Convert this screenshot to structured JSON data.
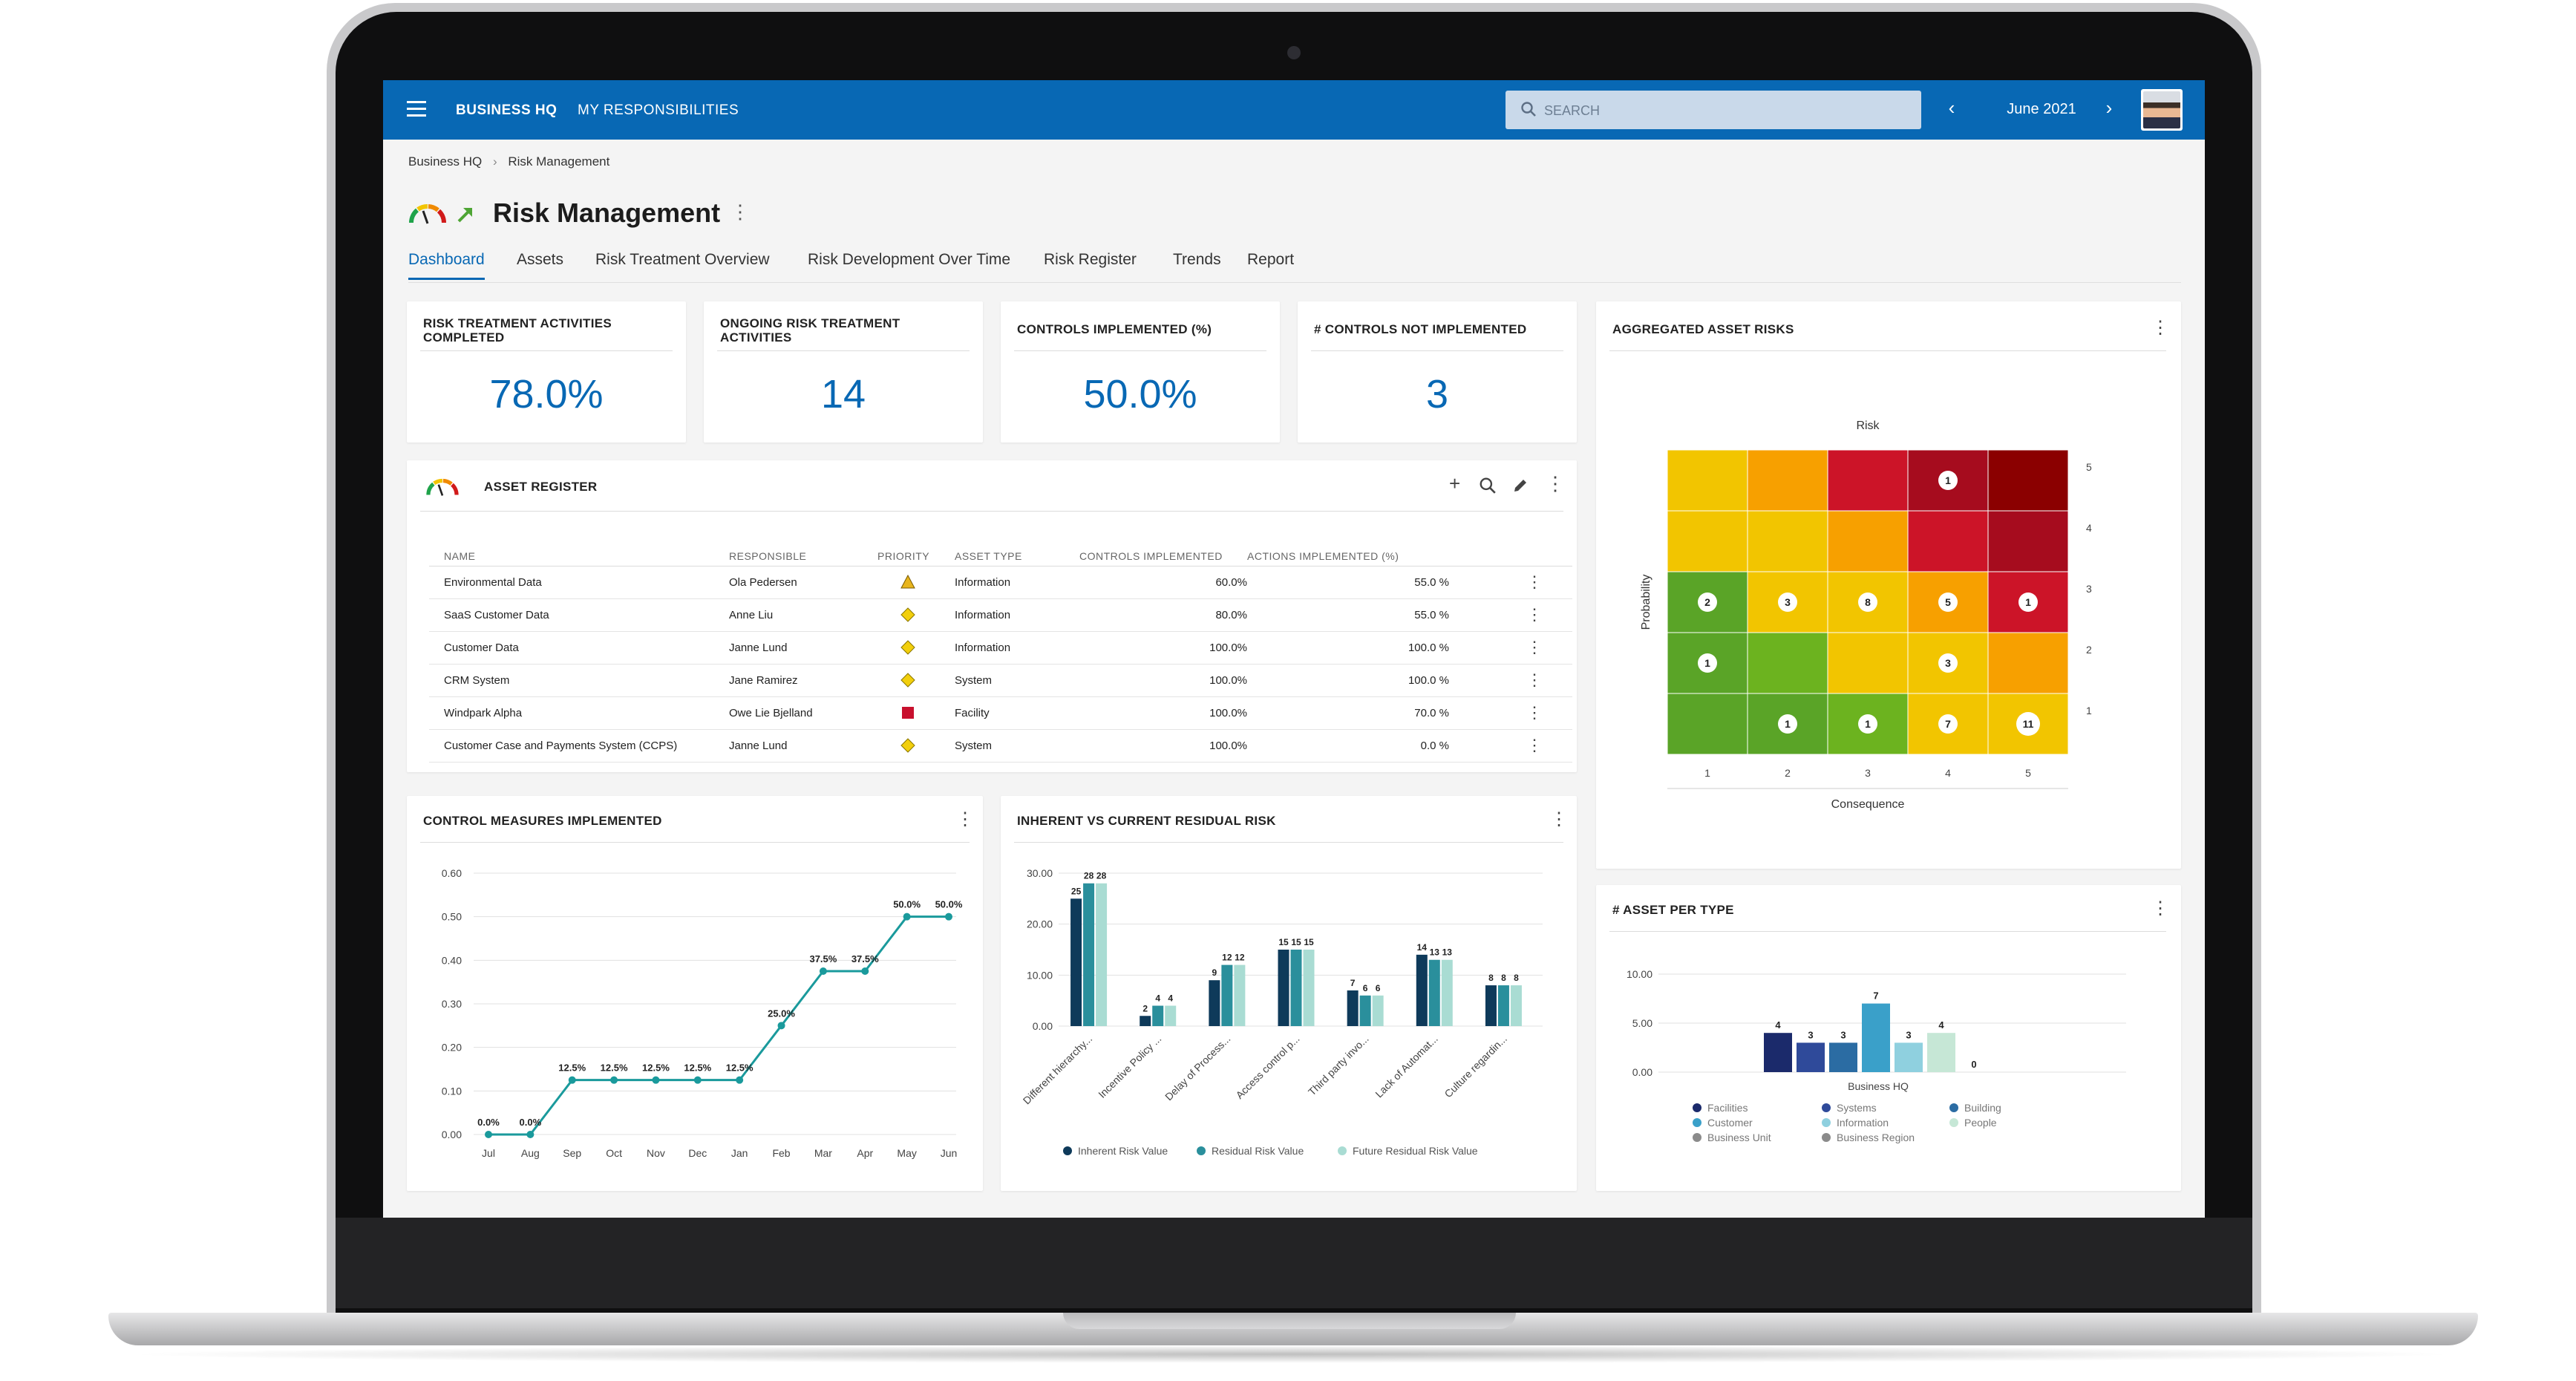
{
  "topbar": {
    "tab_home": "BUSINESS HQ",
    "tab_resp": "MY RESPONSIBILITIES",
    "search_placeholder": "SEARCH",
    "month": "June 2021",
    "prev_icon": "chevron-left-icon",
    "next_icon": "chevron-right-icon"
  },
  "breadcrumb": {
    "root": "Business HQ",
    "sep": "›",
    "current": "Risk Management"
  },
  "page": {
    "title": "Risk Management"
  },
  "tabs": [
    "Dashboard",
    "Assets",
    "Risk Treatment Overview",
    "Risk Development Over Time",
    "Risk Register",
    "Trends",
    "Report"
  ],
  "kpis": [
    {
      "title": "RISK TREATMENT ACTIVITIES COMPLETED",
      "value": "78.0%"
    },
    {
      "title": "ONGOING RISK TREATMENT ACTIVITIES",
      "value": "14"
    },
    {
      "title": "CONTROLS IMPLEMENTED (%)",
      "value": "50.0%"
    },
    {
      "title": "# CONTROLS NOT IMPLEMENTED",
      "value": "3"
    }
  ],
  "asset_register": {
    "title": "ASSET REGISTER",
    "columns": [
      "NAME",
      "RESPONSIBLE",
      "PRIORITY",
      "ASSET TYPE",
      "CONTROLS IMPLEMENTED",
      "ACTIONS IMPLEMENTED (%)"
    ],
    "rows": [
      {
        "name": "Environmental Data",
        "responsible": "Ola Pedersen",
        "priority": "triangle",
        "type": "Information",
        "controls": "60.0%",
        "actions": "55.0 %"
      },
      {
        "name": "SaaS Customer Data",
        "responsible": "Anne Liu",
        "priority": "diamond",
        "type": "Information",
        "controls": "80.0%",
        "actions": "55.0 %"
      },
      {
        "name": "Customer Data",
        "responsible": "Janne Lund",
        "priority": "diamond",
        "type": "Information",
        "controls": "100.0%",
        "actions": "100.0 %"
      },
      {
        "name": "CRM System",
        "responsible": "Jane Ramirez",
        "priority": "diamond",
        "type": "System",
        "controls": "100.0%",
        "actions": "100.0 %"
      },
      {
        "name": "Windpark Alpha",
        "responsible": "Owe Lie Bjelland",
        "priority": "square",
        "type": "Facility",
        "controls": "100.0%",
        "actions": "70.0 %"
      },
      {
        "name": "Customer Case and Payments System (CCPS)",
        "responsible": "Janne Lund",
        "priority": "diamond",
        "type": "System",
        "controls": "100.0%",
        "actions": "0.0 %"
      }
    ],
    "colors": {
      "triangle": "#e8b51d",
      "diamond": "#f2cf0c",
      "square": "#c8102e"
    }
  },
  "chart_data": [
    {
      "type": "heatmap",
      "title": "AGGREGATED ASSET RISKS",
      "chart_title": "Risk",
      "xlabel": "Consequence",
      "ylabel": "Probability",
      "x": [
        1,
        2,
        3,
        4,
        5
      ],
      "y": [
        5,
        4,
        3,
        2,
        1
      ],
      "colors": [
        [
          "#f2c500",
          "#f7a000",
          "#cc1428",
          "#a60c1e",
          "#8b0000"
        ],
        [
          "#f2c500",
          "#f2c500",
          "#f7a000",
          "#cc1428",
          "#a60c1e"
        ],
        [
          "#5aa427",
          "#f2c500",
          "#f2c500",
          "#f7a000",
          "#cc1428"
        ],
        [
          "#5aa427",
          "#6cb31f",
          "#f2c500",
          "#f2c500",
          "#f7a000"
        ],
        [
          "#5aa427",
          "#5aa427",
          "#6cb31f",
          "#f2c500",
          "#f2c500"
        ]
      ],
      "counts": [
        [
          null,
          null,
          null,
          1,
          null
        ],
        [
          null,
          null,
          null,
          null,
          null
        ],
        [
          2,
          3,
          8,
          5,
          1
        ],
        [
          1,
          null,
          null,
          3,
          null
        ],
        [
          null,
          1,
          1,
          7,
          11
        ]
      ]
    },
    {
      "type": "line",
      "title": "CONTROL MEASURES IMPLEMENTED",
      "categories": [
        "Jul",
        "Aug",
        "Sep",
        "Oct",
        "Nov",
        "Dec",
        "Jan",
        "Feb",
        "Mar",
        "Apr",
        "May",
        "Jun"
      ],
      "values": [
        0,
        0,
        0.125,
        0.125,
        0.125,
        0.125,
        0.125,
        0.25,
        0.375,
        0.375,
        0.5,
        0.5
      ],
      "labels": [
        "0.0%",
        "0.0%",
        "12.5%",
        "12.5%",
        "12.5%",
        "12.5%",
        "12.5%",
        "25.0%",
        "37.5%",
        "37.5%",
        "50.0%",
        "50.0%"
      ],
      "ylim": [
        0,
        0.6
      ],
      "yticks": [
        "0.00",
        "0.10",
        "0.20",
        "0.30",
        "0.40",
        "0.50",
        "0.60"
      ],
      "color": "#1a9a9c"
    },
    {
      "type": "bar",
      "title": "INHERENT VS CURRENT RESIDUAL RISK",
      "categories": [
        "Different hierarchy...",
        "Incentive Policy ...",
        "Delay of Process...",
        "Access control p...",
        "Third party invo...",
        "Lack of Automat...",
        "Culture regardin..."
      ],
      "series": [
        {
          "name": "Inherent Risk Value",
          "values": [
            25,
            2,
            9,
            15,
            7,
            14,
            8
          ],
          "color": "#0e3a5a"
        },
        {
          "name": "Residual Risk Value",
          "values": [
            28,
            4,
            12,
            15,
            6,
            13,
            8
          ],
          "color": "#2a8f9c"
        },
        {
          "name": "Future Residual Risk Value",
          "values": [
            28,
            4,
            12,
            15,
            6,
            13,
            8
          ],
          "color": "#a9dcd3"
        }
      ],
      "labels": [
        [
          "25",
          "28",
          "28"
        ],
        [
          "2",
          "4",
          "4"
        ],
        [
          "9",
          "12",
          "12"
        ],
        [
          "15",
          "15",
          "15"
        ],
        [
          "7",
          "6",
          "6"
        ],
        [
          "14",
          "13",
          "13"
        ],
        [
          "8",
          "8",
          "8"
        ]
      ],
      "ylim": [
        0,
        30
      ],
      "yticks": [
        "0.00",
        "10.00",
        "20.00",
        "30.00"
      ]
    },
    {
      "type": "bar",
      "title": "# ASSET PER TYPE",
      "categories": [
        "Business HQ"
      ],
      "series": [
        {
          "name": "Facilities",
          "values": [
            4
          ],
          "color": "#1b2a6b"
        },
        {
          "name": "Systems",
          "values": [
            3
          ],
          "color": "#2f4a9a"
        },
        {
          "name": "Building",
          "values": [
            3
          ],
          "color": "#2b6ca3"
        },
        {
          "name": "Customer",
          "values": [
            7
          ],
          "color": "#3aa0c9"
        },
        {
          "name": "Information",
          "values": [
            3
          ],
          "color": "#8fd0df"
        },
        {
          "name": "People",
          "values": [
            4
          ],
          "color": "#c6e7d6"
        },
        {
          "name": "Business Unit",
          "values": [
            0
          ],
          "color": "#8b8b8b"
        },
        {
          "name": "Business Region",
          "values": [
            0
          ],
          "color": "#8b8b8b"
        }
      ],
      "ylim": [
        0,
        10
      ],
      "yticks": [
        "0.00",
        "5.00",
        "10.00"
      ]
    }
  ]
}
